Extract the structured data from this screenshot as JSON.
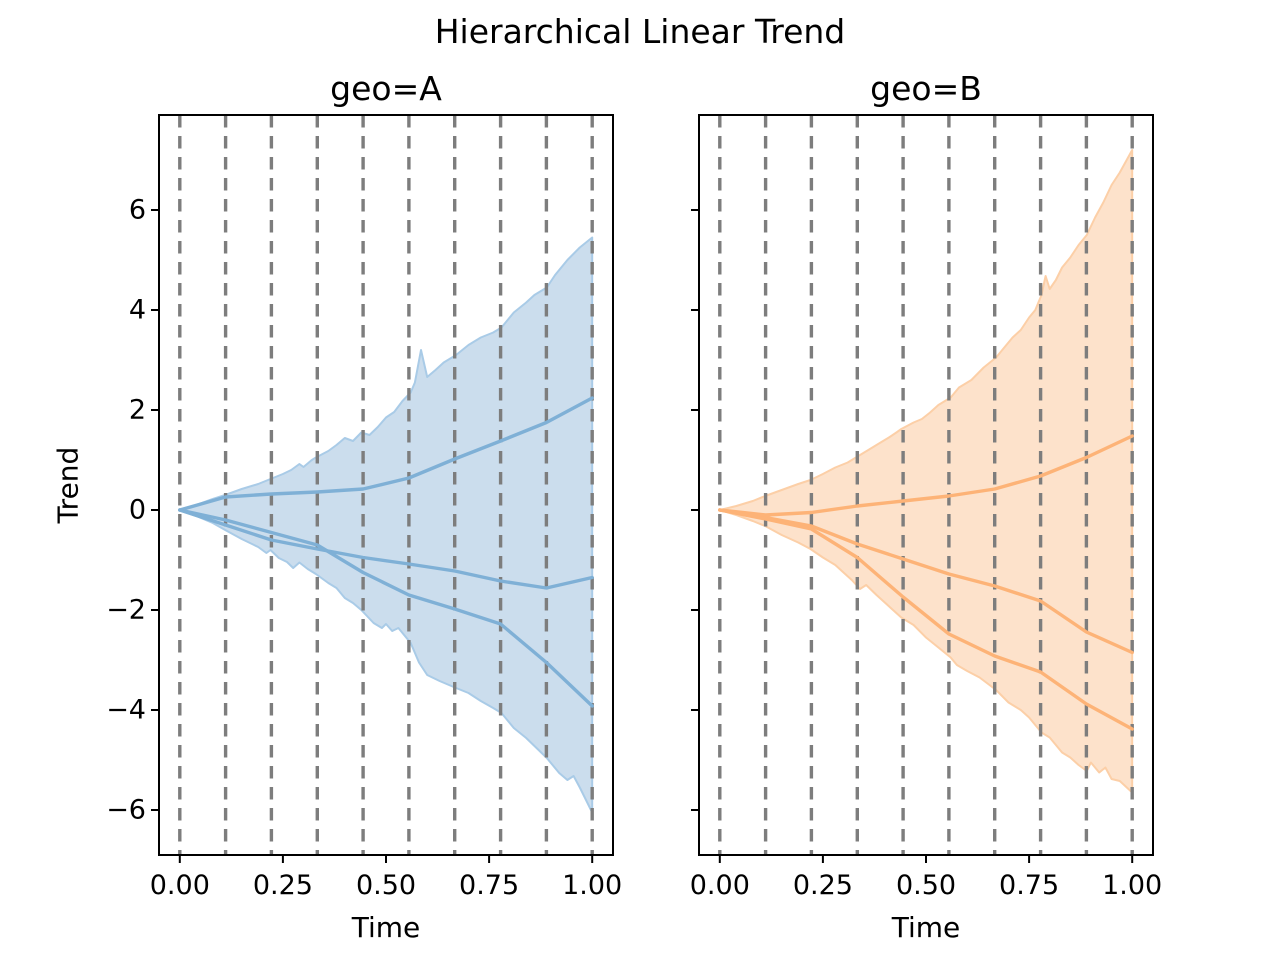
{
  "figure": {
    "title": "Hierarchical Linear Trend"
  },
  "chart_data": [
    {
      "id": "geo-a",
      "type": "area",
      "title": "geo=A",
      "xlabel": "Time",
      "ylabel": "Trend",
      "xlim": [
        -0.0505,
        1.0505
      ],
      "ylim": [
        -6.9,
        7.9
      ],
      "xticks": [
        0,
        0.25,
        0.5,
        0.75,
        1
      ],
      "xtick_labels": [
        "0.00",
        "0.25",
        "0.50",
        "0.75",
        "1.00"
      ],
      "yticks": [
        -6,
        -4,
        -2,
        0,
        2,
        4,
        6
      ],
      "ytick_labels": [
        "−6",
        "−4",
        "−2",
        "0",
        "2",
        "4",
        "6"
      ],
      "grid": "vertical-dashed-changepoints",
      "legend": "none",
      "changepoints": [
        0,
        0.1111,
        0.2222,
        0.3333,
        0.4444,
        0.5556,
        0.6667,
        0.7778,
        0.8889,
        1
      ],
      "colors": {
        "line": "#7fb0d6",
        "fill": "#cbdded",
        "edge": "#a9cbe7",
        "grid": "#7d7d7d"
      },
      "band": {
        "upper": [
          [
            0,
            0
          ],
          [
            0.04,
            0.1
          ],
          [
            0.08,
            0.22
          ],
          [
            0.11,
            0.3
          ],
          [
            0.15,
            0.42
          ],
          [
            0.19,
            0.52
          ],
          [
            0.22,
            0.62
          ],
          [
            0.25,
            0.72
          ],
          [
            0.27,
            0.8
          ],
          [
            0.29,
            0.92
          ],
          [
            0.3,
            0.86
          ],
          [
            0.32,
            1.0
          ],
          [
            0.33,
            1.05
          ],
          [
            0.36,
            1.18
          ],
          [
            0.38,
            1.3
          ],
          [
            0.4,
            1.44
          ],
          [
            0.42,
            1.38
          ],
          [
            0.44,
            1.55
          ],
          [
            0.46,
            1.5
          ],
          [
            0.48,
            1.66
          ],
          [
            0.5,
            1.85
          ],
          [
            0.52,
            1.96
          ],
          [
            0.54,
            2.18
          ],
          [
            0.56,
            2.35
          ],
          [
            0.57,
            2.55
          ],
          [
            0.585,
            3.2
          ],
          [
            0.6,
            2.66
          ],
          [
            0.62,
            2.8
          ],
          [
            0.64,
            2.95
          ],
          [
            0.67,
            3.1
          ],
          [
            0.7,
            3.3
          ],
          [
            0.73,
            3.45
          ],
          [
            0.76,
            3.55
          ],
          [
            0.78,
            3.65
          ],
          [
            0.81,
            3.95
          ],
          [
            0.84,
            4.15
          ],
          [
            0.86,
            4.3
          ],
          [
            0.89,
            4.45
          ],
          [
            0.91,
            4.7
          ],
          [
            0.94,
            5.0
          ],
          [
            0.97,
            5.25
          ],
          [
            1,
            5.45
          ]
        ],
        "lower": [
          [
            0,
            0
          ],
          [
            0.04,
            -0.12
          ],
          [
            0.08,
            -0.26
          ],
          [
            0.11,
            -0.4
          ],
          [
            0.15,
            -0.58
          ],
          [
            0.19,
            -0.74
          ],
          [
            0.21,
            -0.86
          ],
          [
            0.22,
            -0.8
          ],
          [
            0.24,
            -0.96
          ],
          [
            0.26,
            -1.04
          ],
          [
            0.275,
            -1.16
          ],
          [
            0.29,
            -1.05
          ],
          [
            0.31,
            -1.18
          ],
          [
            0.33,
            -1.28
          ],
          [
            0.36,
            -1.46
          ],
          [
            0.38,
            -1.56
          ],
          [
            0.4,
            -1.76
          ],
          [
            0.42,
            -1.86
          ],
          [
            0.44,
            -2.0
          ],
          [
            0.47,
            -2.26
          ],
          [
            0.49,
            -2.36
          ],
          [
            0.5,
            -2.28
          ],
          [
            0.515,
            -2.42
          ],
          [
            0.53,
            -2.36
          ],
          [
            0.56,
            -2.66
          ],
          [
            0.58,
            -3.05
          ],
          [
            0.6,
            -3.3
          ],
          [
            0.63,
            -3.42
          ],
          [
            0.67,
            -3.56
          ],
          [
            0.7,
            -3.66
          ],
          [
            0.73,
            -3.82
          ],
          [
            0.76,
            -3.96
          ],
          [
            0.78,
            -4.06
          ],
          [
            0.81,
            -4.36
          ],
          [
            0.84,
            -4.56
          ],
          [
            0.87,
            -4.8
          ],
          [
            0.89,
            -4.96
          ],
          [
            0.92,
            -5.26
          ],
          [
            0.94,
            -5.4
          ],
          [
            0.955,
            -5.32
          ],
          [
            0.97,
            -5.55
          ],
          [
            1,
            -6.05
          ]
        ]
      },
      "sample_lines": [
        {
          "y": [
            0,
            0.26,
            0.32,
            0.36,
            0.42,
            0.64,
            1.02,
            1.38,
            1.75,
            2.24
          ]
        },
        {
          "y": [
            0,
            -0.3,
            -0.6,
            -0.78,
            -0.95,
            -1.08,
            -1.22,
            -1.42,
            -1.56,
            -1.35
          ]
        },
        {
          "y": [
            0,
            -0.2,
            -0.45,
            -0.7,
            -1.25,
            -1.7,
            -1.98,
            -2.28,
            -3.05,
            -3.92
          ]
        }
      ]
    },
    {
      "id": "geo-b",
      "type": "area",
      "title": "geo=B",
      "xlabel": "Time",
      "ylabel": "",
      "xlim": [
        -0.0505,
        1.0505
      ],
      "ylim": [
        -6.9,
        7.9
      ],
      "xticks": [
        0,
        0.25,
        0.5,
        0.75,
        1
      ],
      "xtick_labels": [
        "0.00",
        "0.25",
        "0.50",
        "0.75",
        "1.00"
      ],
      "yticks": [
        -6,
        -4,
        -2,
        0,
        2,
        4,
        6
      ],
      "ytick_labels": [],
      "grid": "vertical-dashed-changepoints",
      "legend": "none",
      "changepoints": [
        0,
        0.1111,
        0.2222,
        0.3333,
        0.4444,
        0.5556,
        0.6667,
        0.7778,
        0.8889,
        1
      ],
      "colors": {
        "line": "#fdb377",
        "fill": "#fde2cb",
        "edge": "#fccfa7",
        "grid": "#7d7d7d"
      },
      "band": {
        "upper": [
          [
            0,
            0
          ],
          [
            0.04,
            0.08
          ],
          [
            0.08,
            0.18
          ],
          [
            0.11,
            0.28
          ],
          [
            0.15,
            0.4
          ],
          [
            0.19,
            0.52
          ],
          [
            0.22,
            0.6
          ],
          [
            0.25,
            0.72
          ],
          [
            0.28,
            0.85
          ],
          [
            0.31,
            0.95
          ],
          [
            0.33,
            1.05
          ],
          [
            0.36,
            1.2
          ],
          [
            0.39,
            1.35
          ],
          [
            0.41,
            1.45
          ],
          [
            0.43,
            1.56
          ],
          [
            0.44,
            1.62
          ],
          [
            0.47,
            1.75
          ],
          [
            0.49,
            1.82
          ],
          [
            0.51,
            1.95
          ],
          [
            0.53,
            2.1
          ],
          [
            0.56,
            2.25
          ],
          [
            0.58,
            2.45
          ],
          [
            0.61,
            2.6
          ],
          [
            0.64,
            2.85
          ],
          [
            0.67,
            3.05
          ],
          [
            0.69,
            3.25
          ],
          [
            0.71,
            3.45
          ],
          [
            0.73,
            3.6
          ],
          [
            0.75,
            3.85
          ],
          [
            0.765,
            4.0
          ],
          [
            0.78,
            4.3
          ],
          [
            0.79,
            4.68
          ],
          [
            0.8,
            4.42
          ],
          [
            0.815,
            4.6
          ],
          [
            0.83,
            4.85
          ],
          [
            0.85,
            5.05
          ],
          [
            0.87,
            5.3
          ],
          [
            0.89,
            5.5
          ],
          [
            0.91,
            5.85
          ],
          [
            0.93,
            6.15
          ],
          [
            0.95,
            6.5
          ],
          [
            0.97,
            6.75
          ],
          [
            1,
            7.2
          ]
        ],
        "lower": [
          [
            0,
            0
          ],
          [
            0.04,
            -0.1
          ],
          [
            0.08,
            -0.22
          ],
          [
            0.11,
            -0.32
          ],
          [
            0.15,
            -0.5
          ],
          [
            0.19,
            -0.65
          ],
          [
            0.22,
            -0.78
          ],
          [
            0.25,
            -0.95
          ],
          [
            0.28,
            -1.1
          ],
          [
            0.3,
            -1.25
          ],
          [
            0.32,
            -1.4
          ],
          [
            0.34,
            -1.58
          ],
          [
            0.355,
            -1.5
          ],
          [
            0.38,
            -1.7
          ],
          [
            0.4,
            -1.85
          ],
          [
            0.42,
            -2.0
          ],
          [
            0.44,
            -2.15
          ],
          [
            0.47,
            -2.3
          ],
          [
            0.5,
            -2.55
          ],
          [
            0.53,
            -2.75
          ],
          [
            0.56,
            -2.95
          ],
          [
            0.575,
            -3.1
          ],
          [
            0.6,
            -3.22
          ],
          [
            0.63,
            -3.35
          ],
          [
            0.67,
            -3.6
          ],
          [
            0.7,
            -3.85
          ],
          [
            0.73,
            -4.0
          ],
          [
            0.75,
            -4.15
          ],
          [
            0.78,
            -4.45
          ],
          [
            0.8,
            -4.55
          ],
          [
            0.83,
            -4.85
          ],
          [
            0.85,
            -4.95
          ],
          [
            0.87,
            -5.1
          ],
          [
            0.89,
            -5.22
          ],
          [
            0.9,
            -5.05
          ],
          [
            0.92,
            -5.25
          ],
          [
            0.935,
            -5.15
          ],
          [
            0.95,
            -5.38
          ],
          [
            0.97,
            -5.42
          ],
          [
            1,
            -5.65
          ]
        ]
      },
      "sample_lines": [
        {
          "y": [
            0,
            -0.1,
            -0.05,
            0.08,
            0.18,
            0.28,
            0.42,
            0.68,
            1.05,
            1.48
          ]
        },
        {
          "y": [
            0,
            -0.15,
            -0.32,
            -0.68,
            -0.98,
            -1.28,
            -1.52,
            -1.82,
            -2.44,
            -2.85
          ]
        },
        {
          "y": [
            0,
            -0.18,
            -0.38,
            -0.95,
            -1.74,
            -2.48,
            -2.92,
            -3.24,
            -3.88,
            -4.38
          ]
        }
      ]
    }
  ]
}
